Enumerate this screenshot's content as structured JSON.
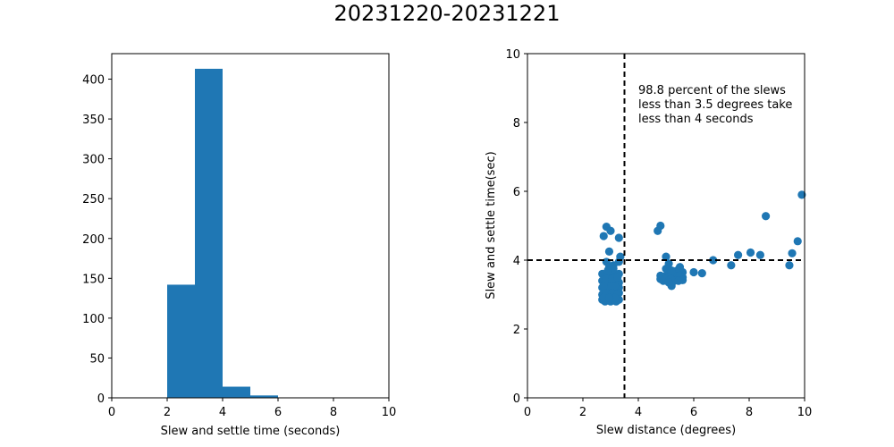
{
  "figure": {
    "title": "20231220-20231221"
  },
  "chart_data": [
    {
      "type": "bar",
      "subtype": "histogram",
      "title": "",
      "xlabel": "Slew and settle time (seconds)",
      "ylabel": "",
      "xlim": [
        0,
        10
      ],
      "ylim": [
        0,
        432
      ],
      "xticks": [
        0,
        2,
        4,
        6,
        8,
        10
      ],
      "yticks": [
        0,
        50,
        100,
        150,
        200,
        250,
        300,
        350,
        400
      ],
      "color": "#1f77b4",
      "bins": [
        {
          "x0": 2,
          "x1": 3,
          "value": 142
        },
        {
          "x0": 3,
          "x1": 4,
          "value": 413
        },
        {
          "x0": 4,
          "x1": 5,
          "value": 14
        },
        {
          "x0": 5,
          "x1": 6,
          "value": 3
        }
      ],
      "grid": false
    },
    {
      "type": "scatter",
      "title": "",
      "xlabel": "Slew distance (degrees)",
      "ylabel": "Slew and settle time(sec)",
      "xlim": [
        0,
        10
      ],
      "ylim": [
        0,
        10
      ],
      "xticks": [
        0,
        2,
        4,
        6,
        8,
        10
      ],
      "yticks": [
        0,
        2,
        4,
        6,
        8,
        10
      ],
      "color": "#1f77b4",
      "reference_lines": {
        "vertical_x": 3.5,
        "horizontal_y": 4,
        "style": "dashed",
        "color": "#000000"
      },
      "annotation": [
        "98.8 percent of the slews",
        "less than 3.5 degrees take",
        "less than 4 seconds"
      ],
      "points": [
        [
          2.75,
          4.7
        ],
        [
          2.85,
          4.97
        ],
        [
          3.0,
          4.85
        ],
        [
          3.3,
          4.65
        ],
        [
          2.95,
          4.25
        ],
        [
          3.35,
          4.1
        ],
        [
          3.3,
          3.95
        ],
        [
          2.85,
          3.95
        ],
        [
          2.95,
          3.8
        ],
        [
          3.1,
          3.85
        ],
        [
          2.7,
          3.6
        ],
        [
          2.8,
          3.5
        ],
        [
          2.9,
          3.55
        ],
        [
          3.0,
          3.6
        ],
        [
          3.1,
          3.5
        ],
        [
          3.2,
          3.55
        ],
        [
          3.3,
          3.6
        ],
        [
          3.0,
          3.7
        ],
        [
          3.1,
          3.75
        ],
        [
          2.9,
          3.7
        ],
        [
          2.7,
          3.4
        ],
        [
          2.8,
          3.3
        ],
        [
          2.9,
          3.35
        ],
        [
          3.0,
          3.4
        ],
        [
          3.1,
          3.3
        ],
        [
          3.2,
          3.4
        ],
        [
          3.3,
          3.35
        ],
        [
          2.85,
          3.45
        ],
        [
          3.05,
          3.45
        ],
        [
          3.25,
          3.5
        ],
        [
          2.7,
          3.2
        ],
        [
          2.8,
          3.1
        ],
        [
          2.9,
          3.15
        ],
        [
          3.0,
          3.2
        ],
        [
          3.1,
          3.1
        ],
        [
          3.2,
          3.15
        ],
        [
          3.3,
          3.2
        ],
        [
          2.95,
          3.25
        ],
        [
          3.15,
          3.25
        ],
        [
          2.75,
          3.25
        ],
        [
          2.7,
          3.0
        ],
        [
          2.8,
          2.95
        ],
        [
          2.9,
          3.0
        ],
        [
          3.0,
          2.95
        ],
        [
          3.1,
          3.0
        ],
        [
          3.2,
          2.95
        ],
        [
          3.3,
          3.05
        ],
        [
          2.85,
          3.05
        ],
        [
          3.05,
          3.05
        ],
        [
          3.25,
          3.0
        ],
        [
          2.7,
          2.85
        ],
        [
          2.8,
          2.8
        ],
        [
          2.9,
          2.85
        ],
        [
          3.0,
          2.8
        ],
        [
          3.1,
          2.85
        ],
        [
          3.2,
          2.8
        ],
        [
          3.3,
          2.85
        ],
        [
          2.75,
          2.9
        ],
        [
          3.15,
          2.9
        ],
        [
          2.95,
          2.9
        ],
        [
          4.8,
          5.0
        ],
        [
          4.7,
          4.85
        ],
        [
          5.0,
          4.1
        ],
        [
          5.1,
          3.9
        ],
        [
          5.0,
          3.75
        ],
        [
          5.5,
          3.8
        ],
        [
          5.4,
          3.7
        ],
        [
          5.6,
          3.65
        ],
        [
          4.8,
          3.55
        ],
        [
          4.9,
          3.5
        ],
        [
          5.0,
          3.55
        ],
        [
          5.1,
          3.5
        ],
        [
          5.2,
          3.6
        ],
        [
          5.3,
          3.55
        ],
        [
          5.4,
          3.5
        ],
        [
          5.5,
          3.55
        ],
        [
          5.6,
          3.5
        ],
        [
          5.2,
          3.7
        ],
        [
          4.8,
          3.45
        ],
        [
          4.9,
          3.4
        ],
        [
          5.0,
          3.45
        ],
        [
          5.1,
          3.4
        ],
        [
          5.2,
          3.45
        ],
        [
          5.3,
          3.4
        ],
        [
          5.45,
          3.4
        ],
        [
          5.6,
          3.42
        ],
        [
          5.2,
          3.25
        ],
        [
          5.1,
          3.35
        ],
        [
          6.0,
          3.65
        ],
        [
          6.3,
          3.62
        ],
        [
          6.7,
          4.0
        ],
        [
          7.35,
          3.85
        ],
        [
          7.6,
          4.15
        ],
        [
          8.05,
          4.22
        ],
        [
          8.4,
          4.15
        ],
        [
          8.6,
          5.28
        ],
        [
          9.45,
          3.85
        ],
        [
          9.55,
          4.2
        ],
        [
          9.75,
          4.55
        ],
        [
          9.9,
          5.9
        ]
      ],
      "grid": false
    }
  ]
}
